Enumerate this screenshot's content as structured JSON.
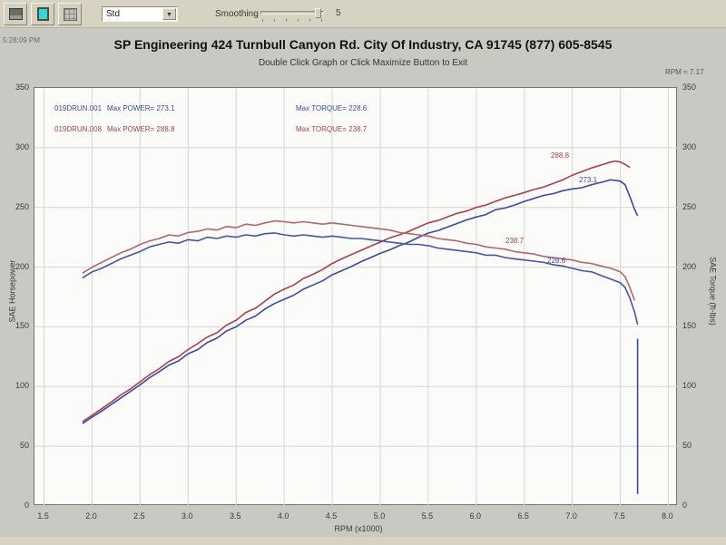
{
  "toolbar": {
    "combo_value": "Std",
    "combo_arrow": "▼",
    "smoothing_label": "Smoothing",
    "smoothing_value": "5",
    "icons": [
      "report-icon",
      "screen-icon",
      "grid-icon"
    ]
  },
  "header": {
    "title": "SP Engineering 424 Turnbull Canyon Rd. City Of Industry, CA 91745 (877) 605-8545",
    "subtitle": "Double Click Graph or Click Maximize Button to Exit",
    "corner_left": "5:28:09 PM",
    "corner_right": "RPM = 7.17"
  },
  "legend": {
    "rows": [
      {
        "file": "019DRUN.001",
        "power": "Max POWER= 273.1",
        "torque": "Max TORQUE= 228.6",
        "color": "#3d4a9e"
      },
      {
        "file": "019DRUN.008",
        "power": "Max POWER= 288.8",
        "torque": "Max TORQUE= 238.7",
        "color": "#a8404e"
      }
    ]
  },
  "colors": {
    "run1_blue": "#3d4a9e",
    "run1_blue_torque": "#4a55a0",
    "run2_red": "#a8404e",
    "run2_red_torque": "#b4656e",
    "grid": "#d6d6d2",
    "toolbar_bg": "#d7d3c3",
    "page_bg": "#c9c9c3",
    "plot_bg": "#fbfbf9"
  },
  "chart_data": {
    "type": "line",
    "title": "SP Engineering 424 Turnbull Canyon Rd. City Of Industry, CA 91745 (877) 605-8545",
    "xlabel": "RPM (x1000)",
    "ylabel_left": "SAE Horsepower",
    "ylabel_right": "SAE Torque (ft-lbs)",
    "xlim": [
      1.4,
      8.1
    ],
    "ylim": [
      0,
      350
    ],
    "x_ticks": [
      "1.5",
      "2.0",
      "2.5",
      "3.0",
      "3.5",
      "4.0",
      "4.5",
      "5.0",
      "5.5",
      "6.0",
      "6.5",
      "7.0",
      "7.5",
      "8.0"
    ],
    "y_ticks": [
      "0",
      "50",
      "100",
      "150",
      "200",
      "250",
      "300",
      "350"
    ],
    "grid": true,
    "legend_position": "top-left-inside",
    "series": [
      {
        "name": "019DRUN.008 SAE Horsepower",
        "color": "#a8404e",
        "max": 288.8,
        "points": [
          [
            1.9,
            70.5
          ],
          [
            2.0,
            76
          ],
          [
            2.1,
            81.5
          ],
          [
            2.2,
            87
          ],
          [
            2.3,
            93
          ],
          [
            2.4,
            98
          ],
          [
            2.5,
            104
          ],
          [
            2.6,
            110
          ],
          [
            2.7,
            115
          ],
          [
            2.8,
            121
          ],
          [
            2.9,
            125
          ],
          [
            3.0,
            131
          ],
          [
            3.1,
            136
          ],
          [
            3.2,
            141.5
          ],
          [
            3.3,
            145
          ],
          [
            3.4,
            151.5
          ],
          [
            3.5,
            155.5
          ],
          [
            3.6,
            162
          ],
          [
            3.7,
            165.5
          ],
          [
            3.8,
            171.5
          ],
          [
            3.9,
            177.5
          ],
          [
            4.0,
            181.5
          ],
          [
            4.1,
            185
          ],
          [
            4.2,
            190.5
          ],
          [
            4.3,
            194
          ],
          [
            4.4,
            198
          ],
          [
            4.5,
            203
          ],
          [
            4.6,
            207
          ],
          [
            4.7,
            210.5
          ],
          [
            4.8,
            214
          ],
          [
            4.9,
            217.5
          ],
          [
            5.0,
            221
          ],
          [
            5.1,
            224.5
          ],
          [
            5.2,
            227
          ],
          [
            5.3,
            230
          ],
          [
            5.4,
            233.5
          ],
          [
            5.5,
            237
          ],
          [
            5.6,
            239
          ],
          [
            5.7,
            242
          ],
          [
            5.8,
            245
          ],
          [
            5.9,
            247
          ],
          [
            6.0,
            250
          ],
          [
            6.1,
            252
          ],
          [
            6.2,
            255
          ],
          [
            6.3,
            258
          ],
          [
            6.4,
            260
          ],
          [
            6.5,
            262.5
          ],
          [
            6.6,
            265
          ],
          [
            6.7,
            267
          ],
          [
            6.8,
            270
          ],
          [
            6.9,
            273
          ],
          [
            7.0,
            277
          ],
          [
            7.1,
            280
          ],
          [
            7.2,
            283
          ],
          [
            7.3,
            285.5
          ],
          [
            7.4,
            288
          ],
          [
            7.45,
            288.8
          ],
          [
            7.5,
            288
          ],
          [
            7.55,
            286
          ],
          [
            7.6,
            283.5
          ]
        ]
      },
      {
        "name": "019DRUN.001 SAE Horsepower",
        "color": "#3d4a9e",
        "max": 273.1,
        "points": [
          [
            1.9,
            69
          ],
          [
            2.0,
            74.5
          ],
          [
            2.1,
            79.5
          ],
          [
            2.2,
            85
          ],
          [
            2.3,
            90.5
          ],
          [
            2.4,
            96
          ],
          [
            2.5,
            101.5
          ],
          [
            2.6,
            107.5
          ],
          [
            2.7,
            112.5
          ],
          [
            2.8,
            118
          ],
          [
            2.9,
            121.5
          ],
          [
            3.0,
            127.5
          ],
          [
            3.1,
            131
          ],
          [
            3.2,
            137
          ],
          [
            3.3,
            140.5
          ],
          [
            3.4,
            146.5
          ],
          [
            3.5,
            150
          ],
          [
            3.6,
            155.5
          ],
          [
            3.7,
            159
          ],
          [
            3.8,
            165
          ],
          [
            3.9,
            169.5
          ],
          [
            4.0,
            173
          ],
          [
            4.1,
            176.5
          ],
          [
            4.2,
            181.5
          ],
          [
            4.3,
            185
          ],
          [
            4.4,
            188.5
          ],
          [
            4.5,
            193.5
          ],
          [
            4.6,
            197
          ],
          [
            4.7,
            200.5
          ],
          [
            4.8,
            204.5
          ],
          [
            4.9,
            208
          ],
          [
            5.0,
            211.5
          ],
          [
            5.1,
            214.5
          ],
          [
            5.2,
            218
          ],
          [
            5.3,
            221
          ],
          [
            5.4,
            225
          ],
          [
            5.5,
            228.5
          ],
          [
            5.6,
            230.5
          ],
          [
            5.7,
            233.5
          ],
          [
            5.8,
            236.5
          ],
          [
            5.9,
            239.5
          ],
          [
            6.0,
            242
          ],
          [
            6.1,
            244
          ],
          [
            6.2,
            248
          ],
          [
            6.3,
            249.5
          ],
          [
            6.4,
            252
          ],
          [
            6.5,
            255
          ],
          [
            6.6,
            257.5
          ],
          [
            6.7,
            260
          ],
          [
            6.8,
            261.5
          ],
          [
            6.9,
            264
          ],
          [
            7.0,
            265.5
          ],
          [
            7.1,
            266.5
          ],
          [
            7.2,
            269
          ],
          [
            7.3,
            271
          ],
          [
            7.4,
            273.1
          ],
          [
            7.5,
            272
          ],
          [
            7.55,
            269
          ],
          [
            7.6,
            259
          ],
          [
            7.65,
            248
          ],
          [
            7.68,
            243
          ]
        ]
      },
      {
        "name": "019DRUN.008 SAE Torque",
        "color": "#b4656e",
        "max": 238.7,
        "points": [
          [
            1.9,
            195
          ],
          [
            2.0,
            200
          ],
          [
            2.1,
            204
          ],
          [
            2.2,
            208
          ],
          [
            2.3,
            212
          ],
          [
            2.4,
            215
          ],
          [
            2.5,
            219
          ],
          [
            2.6,
            222
          ],
          [
            2.7,
            224
          ],
          [
            2.8,
            227
          ],
          [
            2.9,
            226
          ],
          [
            3.0,
            229
          ],
          [
            3.1,
            230
          ],
          [
            3.2,
            232
          ],
          [
            3.3,
            231
          ],
          [
            3.4,
            234
          ],
          [
            3.5,
            233
          ],
          [
            3.6,
            236
          ],
          [
            3.7,
            235
          ],
          [
            3.8,
            237
          ],
          [
            3.9,
            238.7
          ],
          [
            4.0,
            238
          ],
          [
            4.1,
            237
          ],
          [
            4.2,
            238
          ],
          [
            4.3,
            237
          ],
          [
            4.4,
            236
          ],
          [
            4.5,
            237
          ],
          [
            4.6,
            236
          ],
          [
            4.7,
            235
          ],
          [
            4.8,
            234
          ],
          [
            4.9,
            233
          ],
          [
            5.0,
            232
          ],
          [
            5.1,
            231
          ],
          [
            5.2,
            229
          ],
          [
            5.3,
            228
          ],
          [
            5.4,
            227
          ],
          [
            5.5,
            226
          ],
          [
            5.6,
            224
          ],
          [
            5.7,
            223
          ],
          [
            5.8,
            222
          ],
          [
            5.9,
            220
          ],
          [
            6.0,
            219
          ],
          [
            6.1,
            217
          ],
          [
            6.2,
            216
          ],
          [
            6.3,
            215
          ],
          [
            6.4,
            213
          ],
          [
            6.5,
            212
          ],
          [
            6.6,
            211
          ],
          [
            6.7,
            209
          ],
          [
            6.8,
            208
          ],
          [
            6.9,
            207
          ],
          [
            7.0,
            206
          ],
          [
            7.1,
            204
          ],
          [
            7.2,
            203
          ],
          [
            7.3,
            201
          ],
          [
            7.4,
            199
          ],
          [
            7.5,
            196
          ],
          [
            7.55,
            192
          ],
          [
            7.6,
            183
          ],
          [
            7.65,
            172
          ]
        ]
      },
      {
        "name": "019DRUN.001 SAE Torque",
        "color": "#4a55a0",
        "max": 228.6,
        "points": [
          [
            1.9,
            191
          ],
          [
            2.0,
            196
          ],
          [
            2.1,
            199
          ],
          [
            2.2,
            203
          ],
          [
            2.3,
            207
          ],
          [
            2.4,
            210
          ],
          [
            2.5,
            213
          ],
          [
            2.6,
            217
          ],
          [
            2.7,
            219
          ],
          [
            2.8,
            221
          ],
          [
            2.9,
            220
          ],
          [
            3.0,
            223
          ],
          [
            3.1,
            222
          ],
          [
            3.2,
            225
          ],
          [
            3.3,
            224
          ],
          [
            3.4,
            226
          ],
          [
            3.5,
            225
          ],
          [
            3.6,
            227
          ],
          [
            3.7,
            226
          ],
          [
            3.8,
            228
          ],
          [
            3.9,
            228.6
          ],
          [
            4.0,
            227
          ],
          [
            4.1,
            226
          ],
          [
            4.2,
            227
          ],
          [
            4.3,
            226
          ],
          [
            4.4,
            225
          ],
          [
            4.5,
            226
          ],
          [
            4.6,
            225
          ],
          [
            4.7,
            224
          ],
          [
            4.8,
            224
          ],
          [
            4.9,
            223
          ],
          [
            5.0,
            222
          ],
          [
            5.1,
            221
          ],
          [
            5.2,
            220
          ],
          [
            5.3,
            219
          ],
          [
            5.4,
            219
          ],
          [
            5.5,
            218
          ],
          [
            5.6,
            216
          ],
          [
            5.7,
            215
          ],
          [
            5.8,
            214
          ],
          [
            5.9,
            213
          ],
          [
            6.0,
            212
          ],
          [
            6.1,
            210
          ],
          [
            6.2,
            210
          ],
          [
            6.3,
            208
          ],
          [
            6.4,
            207
          ],
          [
            6.5,
            206
          ],
          [
            6.6,
            205
          ],
          [
            6.7,
            204
          ],
          [
            6.8,
            202
          ],
          [
            6.9,
            201
          ],
          [
            7.0,
            199
          ],
          [
            7.1,
            197
          ],
          [
            7.2,
            196
          ],
          [
            7.3,
            193
          ],
          [
            7.4,
            190
          ],
          [
            7.5,
            187
          ],
          [
            7.55,
            183
          ],
          [
            7.6,
            174
          ],
          [
            7.65,
            162
          ],
          [
            7.68,
            152
          ]
        ]
      },
      {
        "name": "019DRUN.001 run-end drop",
        "color": "#3d4a9e",
        "max": null,
        "points": [
          [
            7.68,
            140
          ],
          [
            7.68,
            10
          ]
        ]
      }
    ],
    "annotations": [
      {
        "text": "288.8",
        "color": "#a8404e"
      },
      {
        "text": "273.1",
        "color": "#3d4a9e"
      },
      {
        "text": "238.7",
        "color": "#a8404e"
      },
      {
        "text": "228.6",
        "color": "#3d4a9e"
      }
    ]
  }
}
